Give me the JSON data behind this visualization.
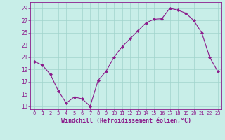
{
  "x": [
    0,
    1,
    2,
    3,
    4,
    5,
    6,
    7,
    8,
    9,
    10,
    11,
    12,
    13,
    14,
    15,
    16,
    17,
    18,
    19,
    20,
    21,
    22,
    23
  ],
  "y": [
    20.3,
    19.7,
    18.2,
    15.5,
    13.5,
    14.5,
    14.2,
    13.0,
    17.2,
    18.7,
    21.0,
    22.7,
    24.0,
    25.3,
    26.6,
    27.2,
    27.3,
    29.0,
    28.7,
    28.2,
    27.0,
    25.0,
    21.0,
    18.7
  ],
  "line_color": "#8B1A8B",
  "marker": "D",
  "marker_size": 2.0,
  "bg_color": "#C8EEE8",
  "grid_color": "#A0D4CC",
  "xlabel": "Windchill (Refroidissement éolien,°C)",
  "xlabel_color": "#8B1A8B",
  "tick_color": "#8B1A8B",
  "ylim": [
    12.5,
    30.0
  ],
  "yticks": [
    13,
    15,
    17,
    19,
    21,
    23,
    25,
    27,
    29
  ],
  "xticks": [
    0,
    1,
    2,
    3,
    4,
    5,
    6,
    7,
    8,
    9,
    10,
    11,
    12,
    13,
    14,
    15,
    16,
    17,
    18,
    19,
    20,
    21,
    22,
    23
  ],
  "xlim": [
    -0.5,
    23.5
  ],
  "xtick_fontsize": 5.0,
  "ytick_fontsize": 5.5,
  "xlabel_fontsize": 6.0,
  "linewidth": 0.8
}
